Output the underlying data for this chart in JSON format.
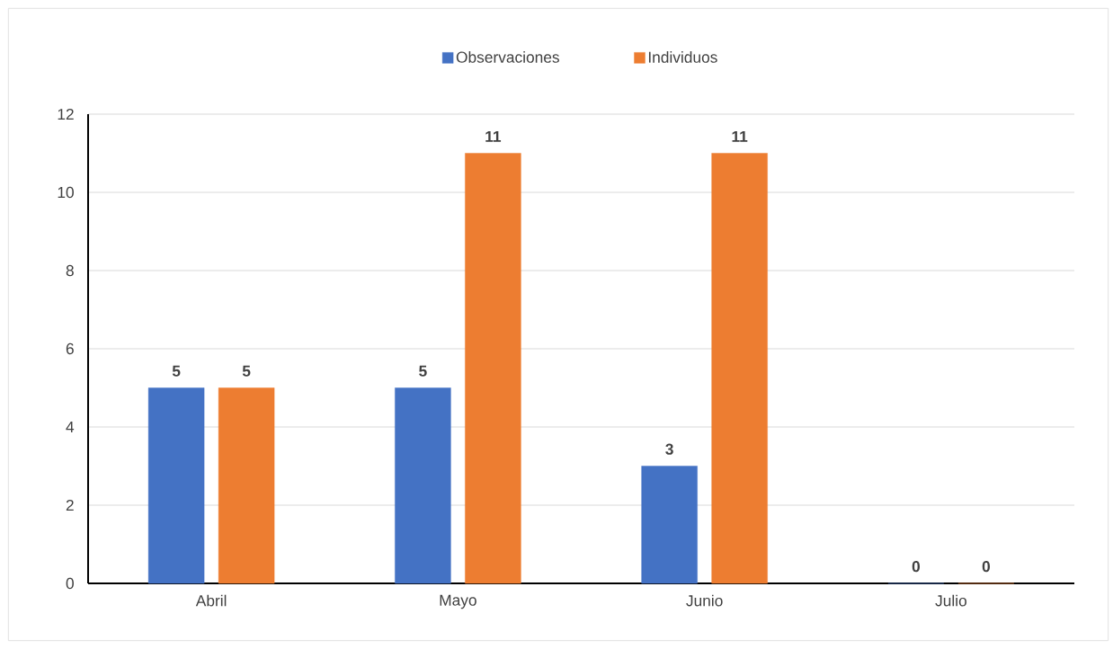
{
  "chart_data": {
    "type": "bar",
    "categories": [
      "Abril",
      "Mayo",
      "Junio",
      "Julio"
    ],
    "series": [
      {
        "name": "Observaciones",
        "color": "#4472c4",
        "values": [
          5,
          5,
          3,
          0
        ]
      },
      {
        "name": "Individuos",
        "color": "#ed7d31",
        "values": [
          5,
          11,
          11,
          0
        ]
      }
    ],
    "ylim": [
      0,
      12
    ],
    "yticks": [
      0,
      2,
      4,
      6,
      8,
      10,
      12
    ],
    "grid": "y",
    "legend": "top",
    "data_labels": true
  }
}
